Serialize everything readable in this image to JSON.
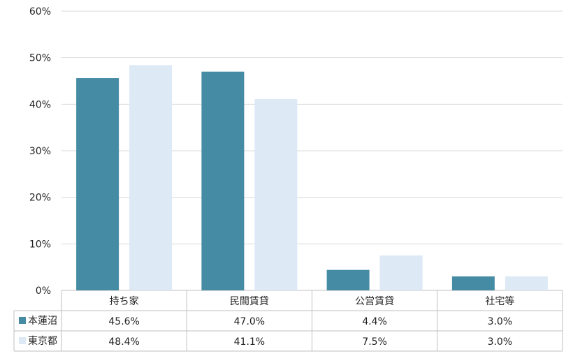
{
  "chart_data": {
    "type": "bar",
    "categories": [
      "持ち家",
      "民間賃貸",
      "公営賃貸",
      "社宅等"
    ],
    "series": [
      {
        "name": "本蓮沼",
        "values": [
          45.6,
          47.0,
          4.4,
          3.0
        ],
        "color": "#458ba3",
        "labels": [
          "45.6%",
          "47.0%",
          "4.4%",
          "3.0%"
        ]
      },
      {
        "name": "東京都",
        "values": [
          48.4,
          41.1,
          7.5,
          3.0
        ],
        "color": "#dde9f5",
        "labels": [
          "48.4%",
          "41.1%",
          "7.5%",
          "3.0%"
        ]
      }
    ],
    "ylim": [
      0,
      60
    ],
    "yticks": [
      0,
      10,
      20,
      30,
      40,
      50,
      60
    ],
    "ytick_labels": [
      "0%",
      "10%",
      "20%",
      "30%",
      "40%",
      "50%",
      "60%"
    ],
    "grid": true,
    "legend": "data-table-left"
  }
}
